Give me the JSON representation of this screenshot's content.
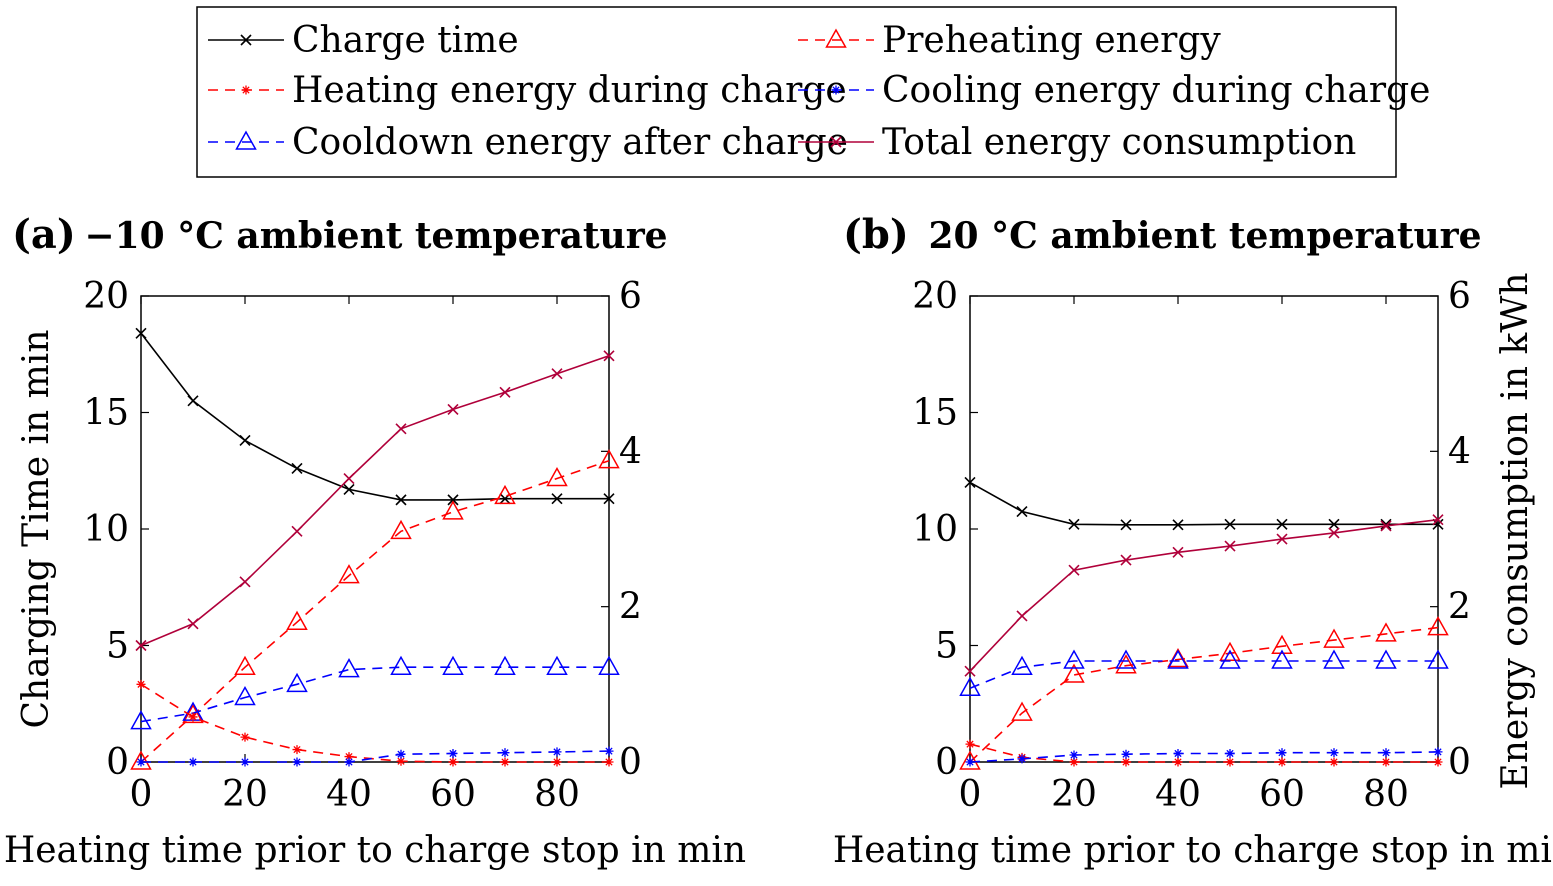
{
  "legend": [
    {
      "label": "Charge time",
      "color": "#000000",
      "dash": false,
      "marker": "x"
    },
    {
      "label": "Preheating energy",
      "color": "#ff0000",
      "dash": true,
      "marker": "triangle"
    },
    {
      "label": "Heating energy during charge",
      "color": "#ff0000",
      "dash": true,
      "marker": "star"
    },
    {
      "label": "Cooling energy during charge",
      "color": "#0000ff",
      "dash": true,
      "marker": "star"
    },
    {
      "label": "Cooldown energy after charge",
      "color": "#0000ff",
      "dash": true,
      "marker": "triangle"
    },
    {
      "label": "Total energy consumption",
      "color": "#b0003a",
      "dash": false,
      "marker": "x"
    }
  ],
  "chart_data": [
    {
      "type": "line",
      "panel_label": "(a)",
      "title": "−10 °C ambient temperature",
      "xlabel": "Heating time prior to charge stop in min",
      "ylabel_left": "Charging Time in min",
      "ylabel_right": "",
      "xlim": [
        0,
        90
      ],
      "ylim_left": [
        0,
        20
      ],
      "ylim_right": [
        0,
        6
      ],
      "xticks": [
        0,
        20,
        40,
        60,
        80
      ],
      "yticks_left": [
        0,
        5,
        10,
        15,
        20
      ],
      "yticks_right": [
        0,
        2,
        4,
        6
      ],
      "x": [
        0,
        10,
        20,
        30,
        40,
        50,
        60,
        70,
        80,
        90
      ],
      "series": [
        {
          "name": "Charge time",
          "axis": "left",
          "values": [
            18.4,
            15.5,
            13.8,
            12.6,
            11.7,
            11.25,
            11.25,
            11.3,
            11.3,
            11.3
          ]
        },
        {
          "name": "Total energy consumption",
          "axis": "right",
          "values": [
            1.5,
            1.78,
            2.32,
            2.97,
            3.65,
            4.29,
            4.54,
            4.76,
            5.0,
            5.23
          ]
        },
        {
          "name": "Preheating energy",
          "axis": "right",
          "values": [
            0.0,
            0.6,
            1.22,
            1.8,
            2.4,
            2.97,
            3.22,
            3.42,
            3.65,
            3.88
          ]
        },
        {
          "name": "Cooldown energy after charge",
          "axis": "right",
          "values": [
            0.52,
            0.63,
            0.83,
            1.0,
            1.19,
            1.22,
            1.22,
            1.22,
            1.22,
            1.22
          ]
        },
        {
          "name": "Heating energy during charge",
          "axis": "right",
          "values": [
            1.0,
            0.58,
            0.32,
            0.16,
            0.07,
            0.01,
            0.0,
            0.0,
            0.0,
            0.0
          ]
        },
        {
          "name": "Cooling energy during charge",
          "axis": "right",
          "values": [
            0.0,
            0.0,
            0.0,
            0.0,
            0.0,
            0.1,
            0.11,
            0.12,
            0.13,
            0.14
          ]
        }
      ]
    },
    {
      "type": "line",
      "panel_label": "(b)",
      "title": "20 °C ambient temperature",
      "xlabel": "Heating time prior to charge stop in min",
      "ylabel_left": "",
      "ylabel_right": "Energy consumption in kWh",
      "xlim": [
        0,
        90
      ],
      "ylim_left": [
        0,
        20
      ],
      "ylim_right": [
        0,
        6
      ],
      "xticks": [
        0,
        20,
        40,
        60,
        80
      ],
      "yticks_left": [
        0,
        5,
        10,
        15,
        20
      ],
      "yticks_right": [
        0,
        2,
        4,
        6
      ],
      "x": [
        0,
        10,
        20,
        30,
        40,
        50,
        60,
        70,
        80,
        90
      ],
      "series": [
        {
          "name": "Charge time",
          "axis": "left",
          "values": [
            12.0,
            10.75,
            10.2,
            10.18,
            10.18,
            10.2,
            10.2,
            10.2,
            10.2,
            10.2
          ]
        },
        {
          "name": "Total energy consumption",
          "axis": "right",
          "values": [
            1.17,
            1.88,
            2.47,
            2.6,
            2.7,
            2.78,
            2.87,
            2.95,
            3.04,
            3.12
          ]
        },
        {
          "name": "Preheating energy",
          "axis": "right",
          "values": [
            0.0,
            0.63,
            1.12,
            1.24,
            1.32,
            1.4,
            1.49,
            1.57,
            1.65,
            1.73
          ]
        },
        {
          "name": "Cooldown energy after charge",
          "axis": "right",
          "values": [
            0.95,
            1.22,
            1.3,
            1.3,
            1.3,
            1.3,
            1.3,
            1.3,
            1.3,
            1.3
          ]
        },
        {
          "name": "Heating energy during charge",
          "axis": "right",
          "values": [
            0.23,
            0.06,
            0.0,
            0.0,
            0.0,
            0.0,
            0.0,
            0.0,
            0.0,
            0.0
          ]
        },
        {
          "name": "Cooling energy during charge",
          "axis": "right",
          "values": [
            0.0,
            0.04,
            0.09,
            0.1,
            0.11,
            0.11,
            0.12,
            0.12,
            0.12,
            0.13
          ]
        }
      ]
    }
  ]
}
